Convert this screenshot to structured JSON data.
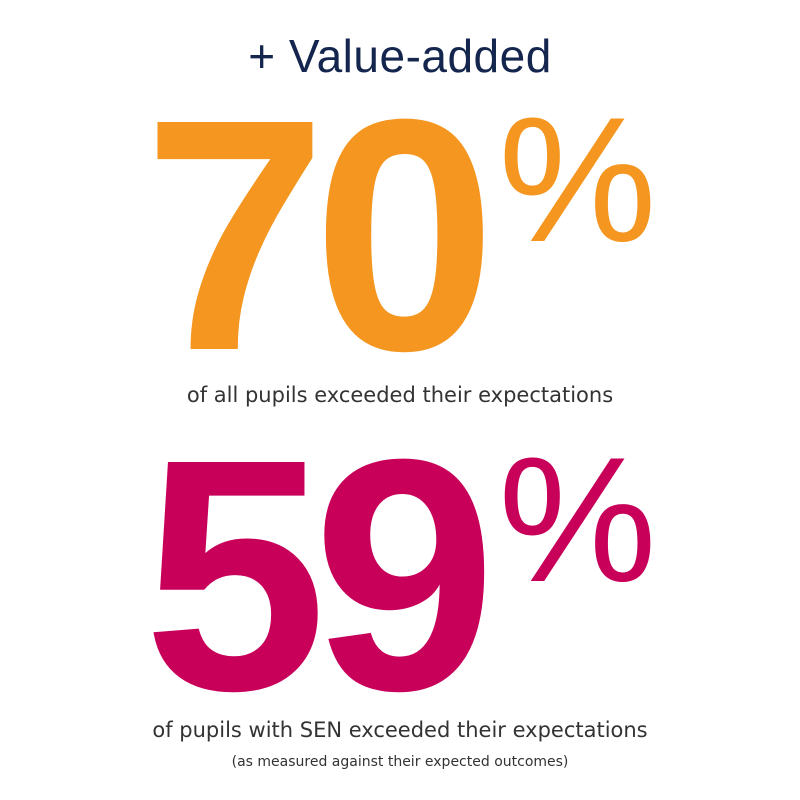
{
  "heading": "+ Value-added",
  "colors": {
    "heading": "#14264e",
    "stat_one": "#f4961f",
    "stat_two": "#c8005a",
    "text": "#333333"
  },
  "stats": [
    {
      "number": "70",
      "unit": "%",
      "caption": "of all pupils exceeded their expectations"
    },
    {
      "number": "59",
      "unit": "%",
      "caption": "of pupils with SEN exceeded their expectations",
      "note": "(as measured against their expected outcomes)"
    }
  ]
}
